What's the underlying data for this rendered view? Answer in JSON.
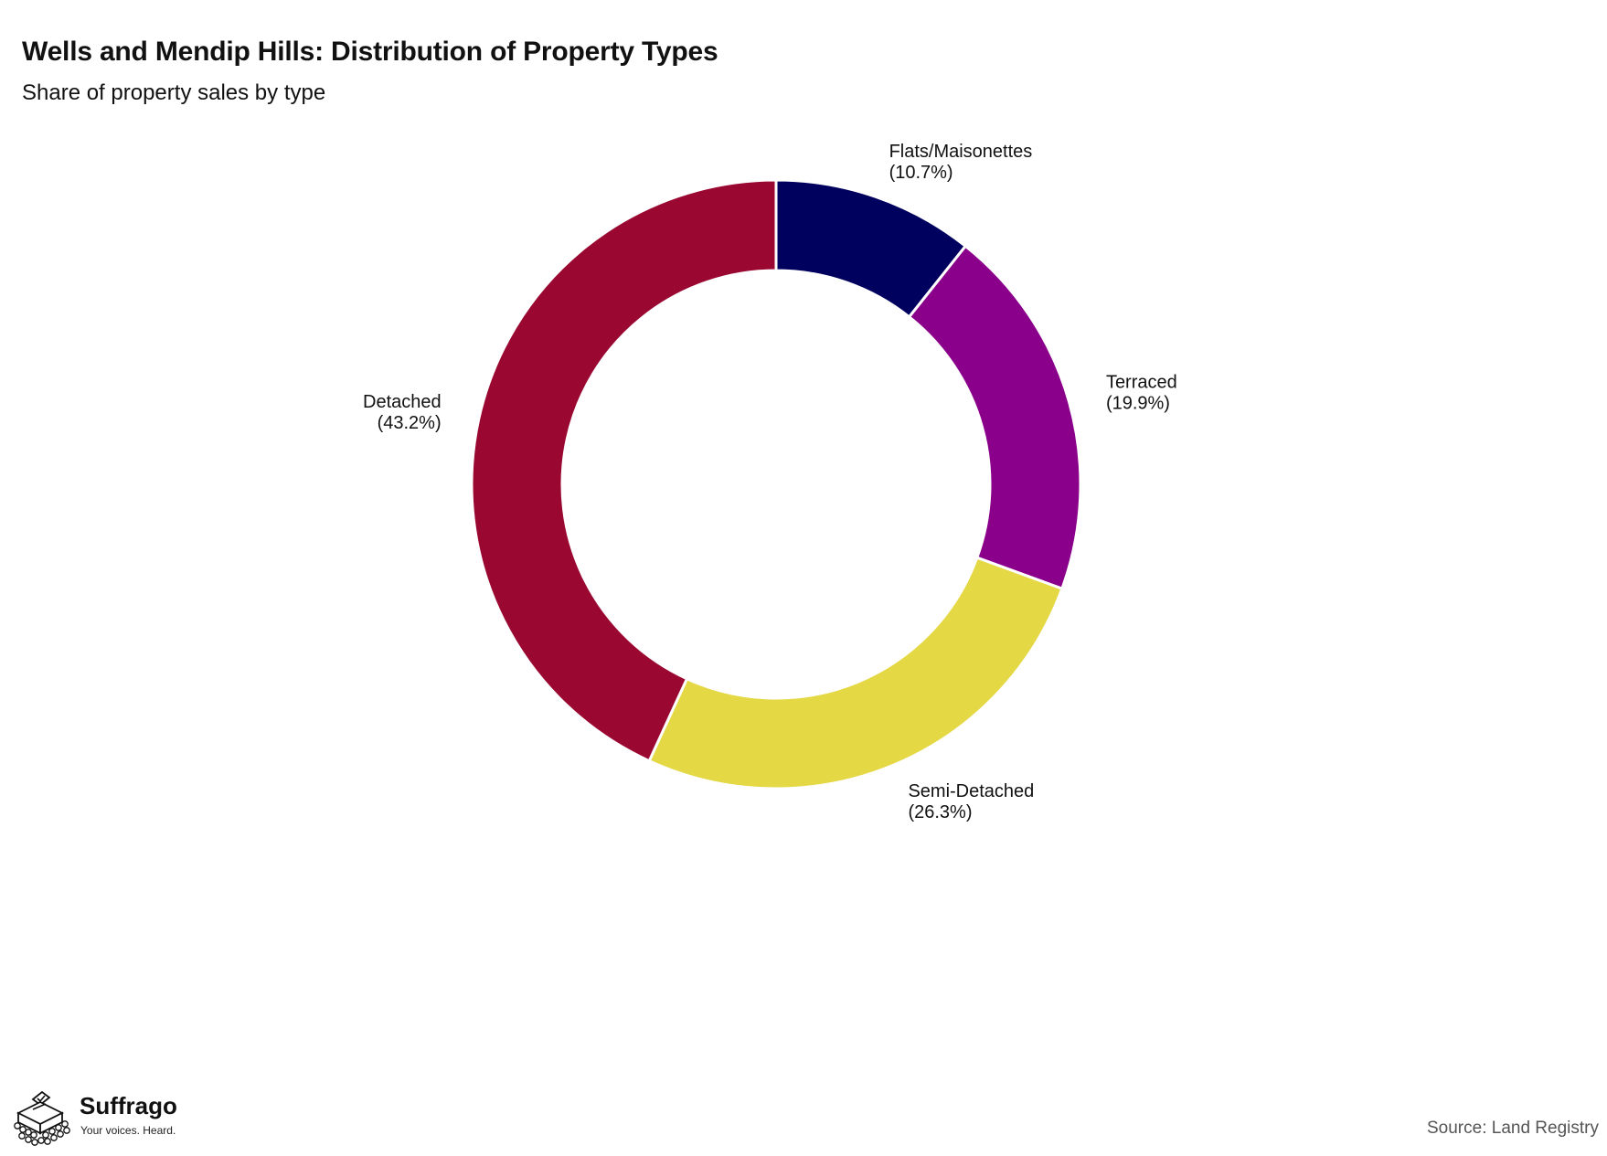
{
  "chart_data": {
    "type": "pie",
    "variant": "donut",
    "title": "Wells and Mendip Hills: Distribution of Property Types",
    "subtitle": "Share of property sales by type",
    "unit": "%",
    "slices": [
      {
        "label": "Flats/Maisonettes",
        "value": 10.7,
        "display": "(10.7%)",
        "color": "#00005f"
      },
      {
        "label": "Terraced",
        "value": 19.9,
        "display": "(19.9%)",
        "color": "#8b008b"
      },
      {
        "label": "Semi-Detached",
        "value": 26.3,
        "display": "(26.3%)",
        "color": "#e4d844"
      },
      {
        "label": "Detached",
        "value": 43.2,
        "display": "(43.2%)",
        "color": "#9a0832"
      }
    ],
    "start": "12 o'clock",
    "direction": "clockwise",
    "legend": "none",
    "grid": false
  },
  "footer": {
    "source": "Source: Land Registry",
    "logo": {
      "name": "Suffrago",
      "tagline": "Your voices. Heard.",
      "icon": "ballot-box-icon"
    }
  }
}
